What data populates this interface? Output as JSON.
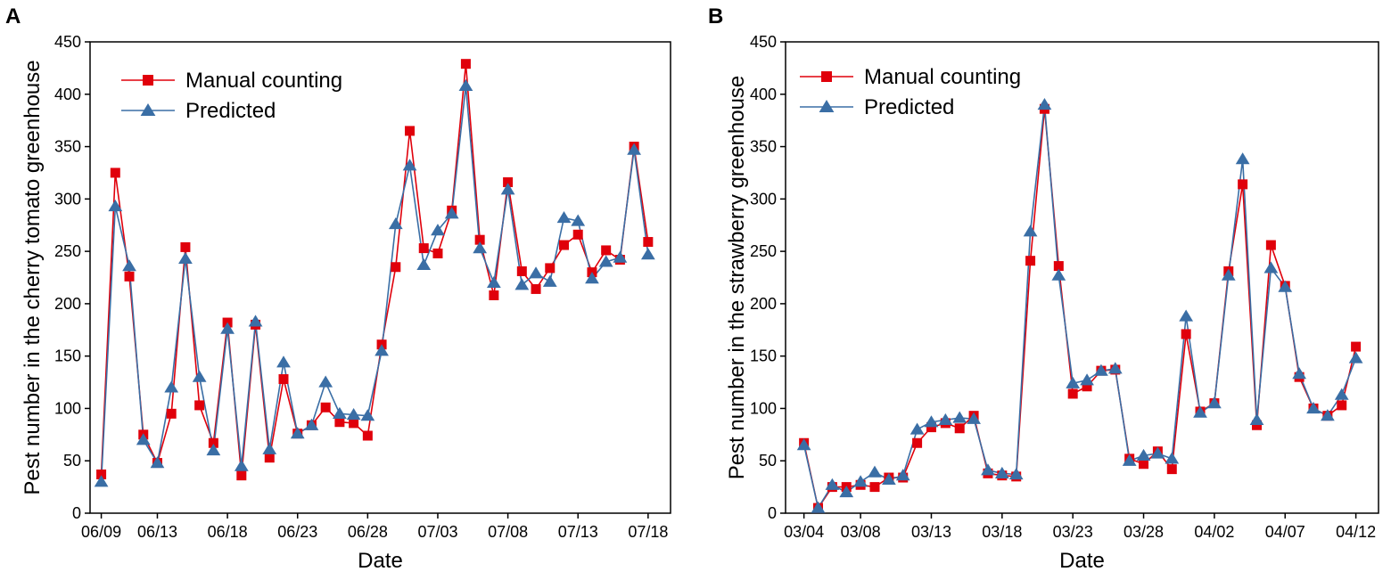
{
  "colors": {
    "manual": "#e0000b",
    "predicted": "#3a6ea5",
    "axis": "#000000"
  },
  "chart_data": [
    {
      "panel_label": "A",
      "type": "line",
      "xlabel": "Date",
      "ylabel": "Pest number in the cherry tomato greenhouse",
      "ylim": [
        0,
        450
      ],
      "yticks": [
        0,
        50,
        100,
        150,
        200,
        250,
        300,
        350,
        400,
        450
      ],
      "ytick_labels": [
        "0",
        "50",
        "100",
        "150",
        "200",
        "250",
        "300",
        "350",
        "400",
        "450"
      ],
      "xlim": [
        -0.8,
        40.6
      ],
      "xticks": [
        0,
        4,
        9,
        14,
        19,
        24,
        29,
        34,
        39
      ],
      "xtick_labels": [
        "06/09",
        "06/13",
        "06/18",
        "06/23",
        "06/28",
        "07/03",
        "07/08",
        "07/13",
        "07/18"
      ],
      "legend_position": "top-left",
      "series": [
        {
          "name": "Manual counting",
          "marker": "square",
          "values": [
            37,
            325,
            226,
            75,
            48,
            95,
            254,
            103,
            67,
            182,
            36,
            180,
            53,
            128,
            76,
            84,
            101,
            87,
            86,
            74,
            161,
            235,
            365,
            253,
            248,
            289,
            429,
            261,
            208,
            316,
            231,
            214,
            234,
            256,
            266,
            230,
            251,
            242,
            350,
            259
          ]
        },
        {
          "name": "Predicted",
          "marker": "triangle",
          "values": [
            30,
            293,
            236,
            70,
            48,
            120,
            243,
            130,
            60,
            176,
            45,
            183,
            61,
            144,
            76,
            84,
            125,
            95,
            94,
            93,
            155,
            276,
            332,
            237,
            270,
            286,
            408,
            253,
            220,
            309,
            218,
            229,
            221,
            282,
            279,
            224,
            240,
            244,
            347,
            247
          ]
        }
      ]
    },
    {
      "panel_label": "B",
      "type": "line",
      "xlabel": "Date",
      "ylabel": "Pest number in the strawberry greenhouse",
      "ylim": [
        0,
        450
      ],
      "yticks": [
        0,
        50,
        100,
        150,
        200,
        250,
        300,
        350,
        400,
        450
      ],
      "ytick_labels": [
        "0",
        "50",
        "100",
        "150",
        "200",
        "250",
        "300",
        "350",
        "400",
        "450"
      ],
      "xlim": [
        -1.3,
        40.6
      ],
      "xticks": [
        0,
        4,
        9,
        14,
        19,
        24,
        29,
        34,
        39
      ],
      "xtick_labels": [
        "03/04",
        "03/08",
        "03/13",
        "03/18",
        "03/23",
        "03/28",
        "04/02",
        "04/07",
        "04/12"
      ],
      "legend_position": "top-left",
      "series": [
        {
          "name": "Manual counting",
          "marker": "square",
          "values": [
            67,
            5,
            25,
            25,
            27,
            25,
            34,
            34,
            67,
            82,
            86,
            81,
            93,
            38,
            36,
            35,
            241,
            386,
            236,
            114,
            121,
            136,
            137,
            52,
            47,
            59,
            42,
            171,
            97,
            105,
            231,
            314,
            84,
            256,
            217,
            130,
            100,
            93,
            103,
            159
          ]
        },
        {
          "name": "Predicted",
          "marker": "triangle",
          "values": [
            65,
            5,
            27,
            20,
            30,
            39,
            32,
            36,
            80,
            87,
            89,
            91,
            90,
            41,
            38,
            37,
            269,
            390,
            227,
            124,
            127,
            136,
            138,
            50,
            55,
            57,
            52,
            188,
            96,
            105,
            227,
            338,
            89,
            234,
            216,
            133,
            100,
            93,
            113,
            148
          ]
        }
      ]
    }
  ]
}
